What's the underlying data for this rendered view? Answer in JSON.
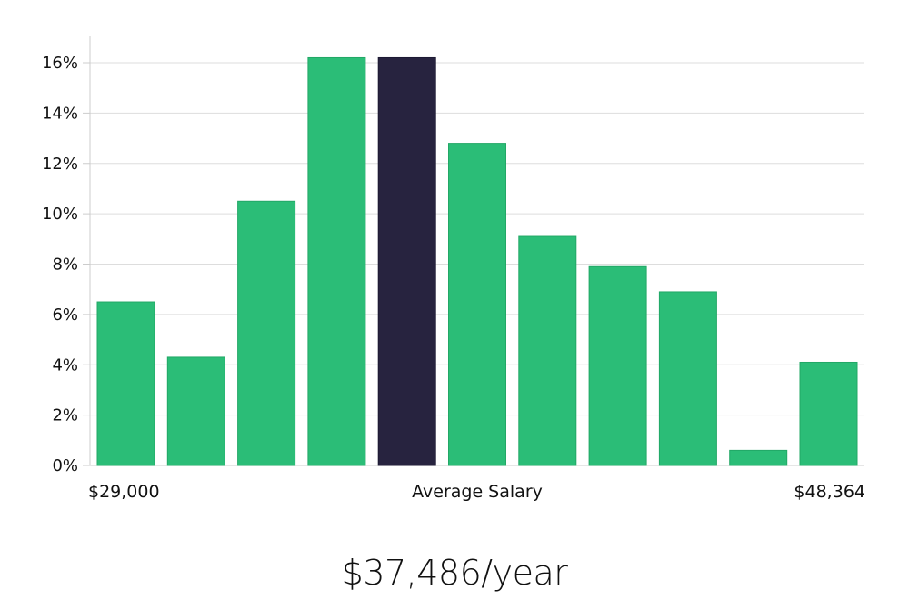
{
  "chart_data": {
    "type": "bar",
    "title": "",
    "xlabel": "Average Salary",
    "ylabel": "",
    "x_start_label": "$29,000",
    "x_end_label": "$48,364",
    "ylim": [
      0,
      17
    ],
    "yticks": [
      0,
      2,
      4,
      6,
      8,
      10,
      12,
      14,
      16
    ],
    "ytick_labels": [
      "0%",
      "2%",
      "4%",
      "6%",
      "8%",
      "10%",
      "12%",
      "14%",
      "16%"
    ],
    "grid": true,
    "values": [
      6.5,
      4.3,
      10.5,
      16.2,
      16.2,
      12.8,
      9.1,
      7.9,
      6.9,
      0.6,
      4.1
    ],
    "highlight_index": 4,
    "colors": {
      "bar": "#2bbd77",
      "highlight": "#27233f",
      "grid": "#dddddd",
      "axis": "#cccccc"
    }
  },
  "summary": {
    "salary_text": "$37,486/year"
  }
}
